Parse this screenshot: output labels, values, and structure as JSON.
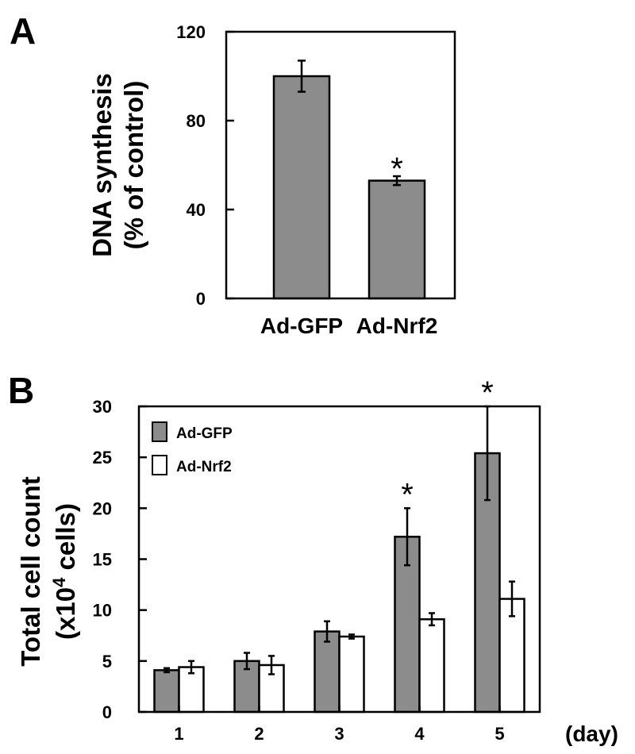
{
  "chart_data": [
    {
      "panel_label": "A",
      "type": "bar",
      "ylabel_line1": "DNA synthesis",
      "ylabel_line2": "(% of control)",
      "ylim": [
        0,
        120
      ],
      "yticks": [
        "0",
        "40",
        "80",
        "120"
      ],
      "categories": [
        "Ad-GFP",
        "Ad-Nrf2"
      ],
      "values": [
        100,
        53
      ],
      "errors": [
        7,
        2
      ],
      "significant": [
        false,
        true
      ],
      "significance_mark": "*",
      "bar_color": "#8c8c8c"
    },
    {
      "panel_label": "B",
      "type": "bar",
      "ylabel_line1": "Total cell count",
      "ylabel_line2_prefix": "(x10",
      "ylabel_line2_sup": "4",
      "ylabel_line2_suffix": " cells)",
      "ylim": [
        0,
        30
      ],
      "yticks": [
        "0",
        "5",
        "10",
        "15",
        "20",
        "25",
        "30"
      ],
      "categories": [
        "1",
        "2",
        "3",
        "4",
        "5"
      ],
      "x_unit": "(day)",
      "series": [
        {
          "name": "Ad-GFP",
          "color": "#8c8c8c",
          "values": [
            4.1,
            5.0,
            7.9,
            17.2,
            25.4
          ],
          "errors": [
            0.2,
            0.8,
            1.0,
            2.8,
            4.6
          ]
        },
        {
          "name": "Ad-Nrf2",
          "color": "#ffffff",
          "values": [
            4.4,
            4.6,
            7.4,
            9.1,
            11.1
          ],
          "errors": [
            0.6,
            0.9,
            0.2,
            0.6,
            1.7
          ]
        }
      ],
      "significant": [
        false,
        false,
        false,
        true,
        true
      ],
      "significance_mark": "*",
      "legend_position": "top-left"
    }
  ]
}
